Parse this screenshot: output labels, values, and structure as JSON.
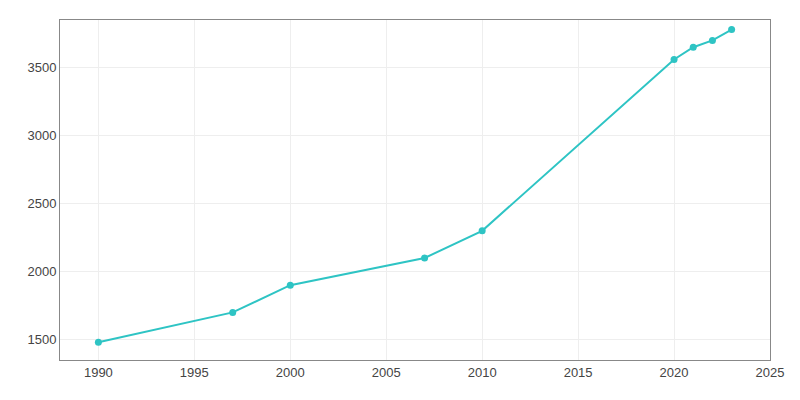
{
  "chart_data": {
    "type": "line",
    "x": [
      1990,
      1997,
      2000,
      2007,
      2010,
      2020,
      2021,
      2022,
      2023
    ],
    "values": [
      1480,
      1700,
      1900,
      2100,
      2300,
      3560,
      3650,
      3700,
      3780
    ],
    "color": "#2EC4C4",
    "marker": "circle",
    "xlim": [
      1988,
      2025
    ],
    "ylim": [
      1350,
      3850
    ],
    "xticks": [
      1990,
      1995,
      2000,
      2005,
      2010,
      2015,
      2020,
      2025
    ],
    "yticks": [
      1500,
      2000,
      2500,
      3000,
      3500
    ],
    "grid": true
  }
}
